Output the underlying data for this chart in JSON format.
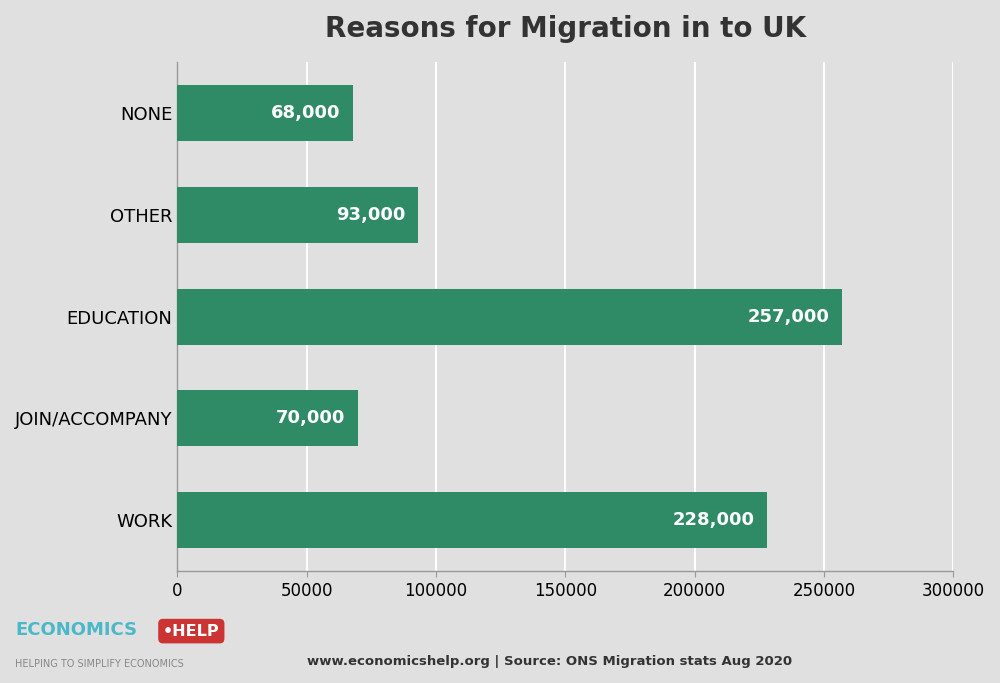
{
  "title": "Reasons for Migration in to UK",
  "categories": [
    "WORK",
    "JOIN/ACCOMPANY",
    "EDUCATION",
    "OTHER",
    "NONE"
  ],
  "values": [
    228000,
    70000,
    257000,
    93000,
    68000
  ],
  "labels": [
    "228,000",
    "70,000",
    "257,000",
    "93,000",
    "68,000"
  ],
  "bar_color": "#2e8b65",
  "background_color": "#e0e0e0",
  "plot_bg_color": "#e0e0e0",
  "text_color_bar": "#ffffff",
  "title_fontsize": 20,
  "label_fontsize": 13,
  "tick_fontsize": 12,
  "category_fontsize": 13,
  "xlim": [
    0,
    300000
  ],
  "xticks": [
    0,
    50000,
    100000,
    150000,
    200000,
    250000,
    300000
  ],
  "xtick_labels": [
    "0",
    "50000",
    "100000",
    "150000",
    "200000",
    "250000",
    "300000"
  ],
  "grid_color": "#ffffff",
  "source_text": "www.economicshelp.org | Source: ONS Migration stats Aug 2020",
  "logo_text_economics": "ECONOMICS",
  "logo_text_help": "•HELP",
  "logo_color_economics": "#4ab8c8",
  "logo_color_help": "#cc3333",
  "logo_subtext": "HELPING TO SIMPLIFY ECONOMICS"
}
